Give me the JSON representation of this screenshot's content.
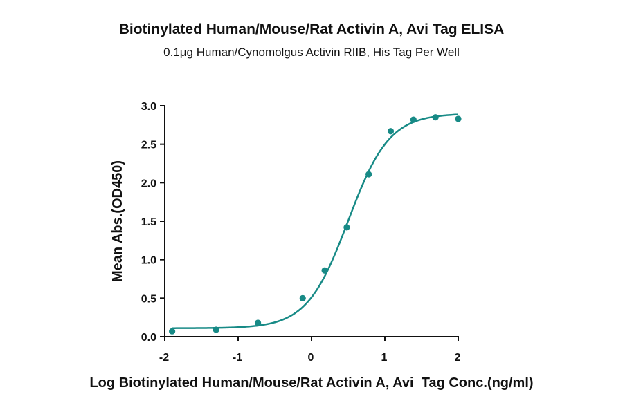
{
  "chart_data": {
    "type": "scatter",
    "title": "Biotinylated Human/Mouse/Rat Activin A, Avi Tag ELISA",
    "subtitle": "0.1μg Human/Cynomolgus Activin RIIB, His Tag Per Well",
    "xlabel": "Log Biotinylated Human/Mouse/Rat Activin A, Avi  Tag Conc.(ng/ml)",
    "ylabel": "Mean Abs.(OD450)",
    "xlim": [
      -2,
      2
    ],
    "ylim": [
      0,
      3.0
    ],
    "x_ticks": [
      "-2",
      "-1",
      "0",
      "1",
      "2"
    ],
    "y_ticks": [
      "0.0",
      "0.5",
      "1.0",
      "1.5",
      "2.0",
      "2.5",
      "3.0"
    ],
    "x_tick_values": [
      -2,
      -1,
      0,
      1,
      2
    ],
    "y_tick_values": [
      0,
      0.5,
      1.0,
      1.5,
      2.0,
      2.5,
      3.0
    ],
    "series": [
      {
        "points": [
          {
            "x": -1.9,
            "y": 0.07
          },
          {
            "x": -1.3,
            "y": 0.09
          },
          {
            "x": -0.73,
            "y": 0.18
          },
          {
            "x": -0.12,
            "y": 0.5
          },
          {
            "x": 0.18,
            "y": 0.86
          },
          {
            "x": 0.48,
            "y": 1.42
          },
          {
            "x": 0.78,
            "y": 2.11
          },
          {
            "x": 1.08,
            "y": 2.67
          },
          {
            "x": 1.39,
            "y": 2.82
          },
          {
            "x": 1.69,
            "y": 2.85
          },
          {
            "x": 2.0,
            "y": 2.83
          }
        ],
        "fit": {
          "model": "four-parameter logistic",
          "bottom": 0.11,
          "top": 2.9,
          "logEC50": 0.5,
          "hill": 1.55
        },
        "color": "#178a86"
      }
    ],
    "grid": false,
    "legend": "none"
  }
}
